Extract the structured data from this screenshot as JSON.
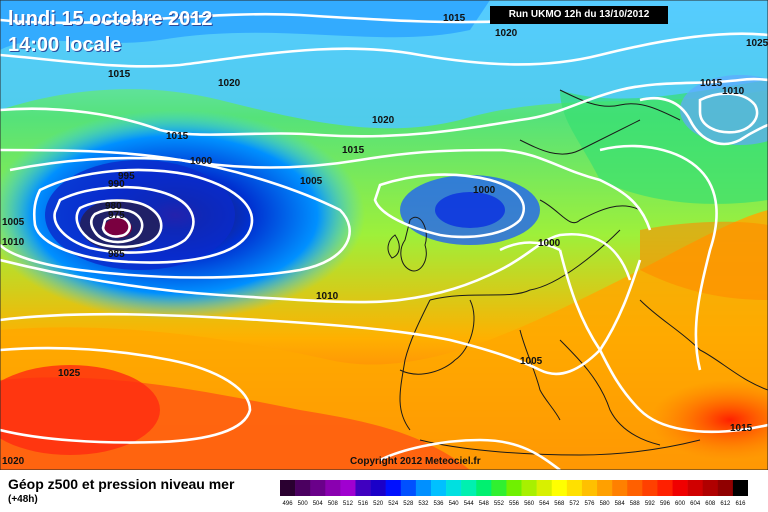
{
  "header": {
    "date_line": "lundi 15 octobre 2012",
    "time_line": "14:00 locale",
    "run_info": "Run UKMO 12h du 13/10/2012"
  },
  "footer": {
    "title": "Géop z500 et pression niveau mer",
    "subtitle": "(+48h)",
    "copyright": "Copyright 2012 Meteociel.fr"
  },
  "isobar_labels": [
    "1015",
    "1020",
    "1025",
    "1015",
    "1020",
    "1020",
    "1015",
    "1010",
    "1015",
    "1015",
    "1000",
    "995",
    "990",
    "1005",
    "980",
    "975",
    "985",
    "1005",
    "1010",
    "1000",
    "1000",
    "1010",
    "1005",
    "1025",
    "1020",
    "1015"
  ],
  "legend": {
    "values": [
      "496",
      "500",
      "504",
      "508",
      "512",
      "516",
      "520",
      "524",
      "528",
      "532",
      "536",
      "540",
      "544",
      "548",
      "552",
      "556",
      "560",
      "564",
      "568",
      "572",
      "576",
      "580",
      "584",
      "588",
      "592",
      "596",
      "600",
      "604",
      "608",
      "612",
      "616"
    ],
    "colors": [
      "#2a0030",
      "#4b0060",
      "#6a008a",
      "#8a00b0",
      "#a000d0",
      "#4000c0",
      "#1a00c8",
      "#0010ff",
      "#0050ff",
      "#0090ff",
      "#00c0ff",
      "#00e0e0",
      "#00f0b0",
      "#00f070",
      "#30f030",
      "#70f000",
      "#a8f000",
      "#d8f000",
      "#ffff00",
      "#ffe000",
      "#ffc000",
      "#ffa000",
      "#ff8000",
      "#ff6000",
      "#ff4000",
      "#ff2000",
      "#f00000",
      "#d00000",
      "#b00000",
      "#900000",
      "#000000"
    ]
  }
}
